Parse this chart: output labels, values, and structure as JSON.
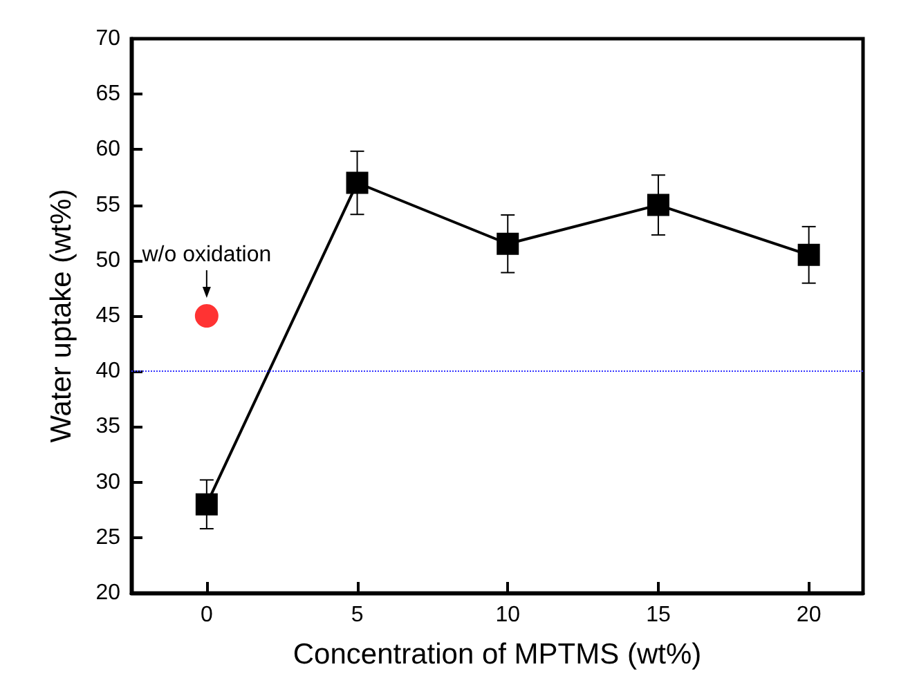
{
  "chart_data": {
    "type": "line",
    "xlabel": "Concentration of MPTMS (wt%)",
    "ylabel": "Water uptake (wt%)",
    "xlim": [
      -2.5,
      21.8
    ],
    "xticks": [
      0,
      5,
      10,
      15,
      20
    ],
    "ylim": [
      20,
      70
    ],
    "yticks": [
      20,
      25,
      30,
      35,
      40,
      45,
      50,
      55,
      60,
      65,
      70
    ],
    "grid": false,
    "marker": "square",
    "line_style": "solid",
    "series": [
      {
        "color": "#000000",
        "x": [
          0,
          5,
          10,
          15,
          20
        ],
        "values": [
          28,
          57,
          51.5,
          55,
          50.5
        ],
        "errors": [
          2.2,
          2.85,
          2.6,
          2.7,
          2.55
        ]
      },
      {
        "type": "scatter",
        "color": "#ff0000",
        "marker": "circle",
        "x": [
          0
        ],
        "values": [
          45
        ]
      }
    ],
    "ref_lines": [
      {
        "axis": "y",
        "value": 40,
        "color": "#3333ff",
        "line_style": "dotted"
      }
    ],
    "annotations": [
      {
        "text": "w/o oxidation",
        "x": 0,
        "y": 45
      }
    ]
  }
}
